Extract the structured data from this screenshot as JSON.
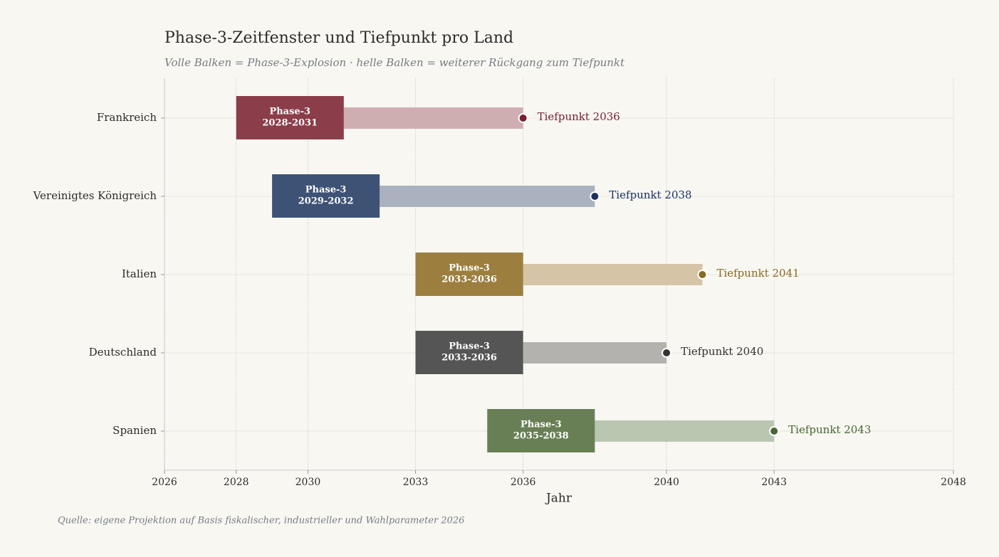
{
  "chart_data": {
    "type": "gantt",
    "title": "Phase-3-Zeitfenster und Tiefpunkt pro Land",
    "subtitle": "Volle Balken = Phase-3-Explosion · helle Balken = weiterer Rückgang zum Tiefpunkt",
    "xlabel": "Jahr",
    "source": "Quelle: eigene Projektion auf Basis fiskalischer, industrieller und Wahlparameter 2026",
    "categories": [
      "Frankreich",
      "Vereinigtes Königreich",
      "Italien",
      "Deutschland",
      "Spanien"
    ],
    "colors": [
      "#8b3d4a",
      "#3d5275",
      "#9c7e3e",
      "#555555",
      "#687f55"
    ],
    "light_colors": [
      "#cfaeb1",
      "#abb2bf",
      "#d5c5a6",
      "#b3b2ae",
      "#b9c6b0"
    ],
    "point_colors": [
      "#7a1f30",
      "#1c3260",
      "#8a6a22",
      "#333333",
      "#4a6636"
    ],
    "phase": {
      "label": "Phase-3",
      "start": [
        2028,
        2029,
        2033,
        2033,
        2035
      ],
      "end": [
        2031,
        2032,
        2036,
        2036,
        2038
      ],
      "value_labels": [
        "2028-2031",
        "2029-2032",
        "2033-2036",
        "2033-2036",
        "2035-2038"
      ]
    },
    "trough": {
      "values": [
        2036,
        2038,
        2041,
        2040,
        2043
      ],
      "value_labels": [
        "Tiefpunkt 2036",
        "Tiefpunkt 2038",
        "Tiefpunkt 2041",
        "Tiefpunkt 2040",
        "Tiefpunkt 2043"
      ]
    },
    "xlim": [
      2026,
      2048
    ],
    "xticks": [
      2026,
      2028,
      2030,
      2033,
      2036,
      2040,
      2043,
      2048
    ],
    "grid": true
  }
}
